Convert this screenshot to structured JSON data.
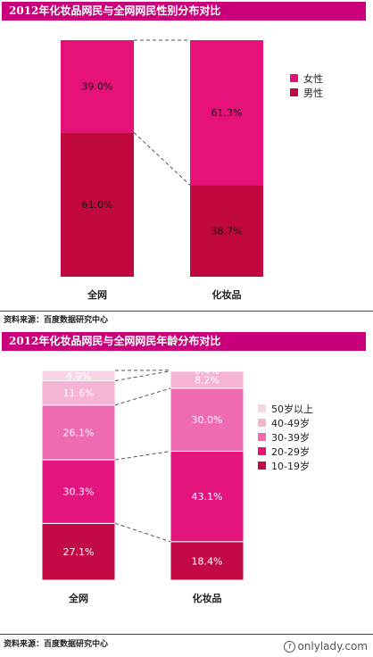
{
  "colors": {
    "title_bar": "#c9007a",
    "female": "#e6127a",
    "male": "#c0083e",
    "age_50plus": "#f8d6e8",
    "age_40_49": "#f5b3d6",
    "age_30_39": "#ee6bb3",
    "age_20_29": "#e4147f",
    "age_10_19": "#c40a45"
  },
  "chart_data": [
    {
      "type": "bar",
      "stacked": true,
      "title": "2012年化妆品网民与全网网民性别分布对比",
      "categories": [
        "全网",
        "化妆品"
      ],
      "series": [
        {
          "name": "男性",
          "values": [
            61.0,
            38.7
          ],
          "labels": [
            "61.0%",
            "38.7%"
          ],
          "color": "#c0083e"
        },
        {
          "name": "女性",
          "values": [
            39.0,
            61.3
          ],
          "labels": [
            "39.0%",
            "61.3%"
          ],
          "color": "#e6127a"
        }
      ],
      "legend_order": [
        "女性",
        "男性"
      ],
      "legend_position": "right",
      "ylim": [
        0,
        100
      ],
      "source": "资料来源：百度数据研究中心"
    },
    {
      "type": "bar",
      "stacked": true,
      "title": "2012年化妆品网民与全网网民年龄分布对比",
      "categories": [
        "全网",
        "化妆品"
      ],
      "series": [
        {
          "name": "10-19岁",
          "values": [
            27.1,
            18.4
          ],
          "labels": [
            "27.1%",
            "18.4%"
          ],
          "color": "#c40a45"
        },
        {
          "name": "20-29岁",
          "values": [
            30.3,
            43.1
          ],
          "labels": [
            "30.3%",
            "43.1%"
          ],
          "color": "#e4147f"
        },
        {
          "name": "30-39岁",
          "values": [
            26.1,
            30.0
          ],
          "labels": [
            "26.1%",
            "30.0%"
          ],
          "color": "#ee6bb3"
        },
        {
          "name": "40-49岁",
          "values": [
            11.6,
            8.2
          ],
          "labels": [
            "11.6%",
            "8.2%"
          ],
          "color": "#f5b3d6"
        },
        {
          "name": "50岁以上",
          "values": [
            4.9,
            0.4
          ],
          "labels": [
            "4.9%",
            "0.4%"
          ],
          "color": "#f8d6e8"
        }
      ],
      "legend_order": [
        "50岁以上",
        "40-49岁",
        "30-39岁",
        "20-29岁",
        "10-19岁"
      ],
      "legend_position": "right",
      "ylim": [
        0,
        100
      ],
      "source": "资料来源：百度数据研究中心"
    }
  ],
  "panel1": {
    "title": "2012年化妆品网民与全网网民性别分布对比",
    "source": "资料来源：百度数据研究中心"
  },
  "panel2": {
    "title": "2012年化妆品网民与全网网民年龄分布对比",
    "source": "资料来源：百度数据研究中心"
  },
  "watermark": "onlylady.com"
}
